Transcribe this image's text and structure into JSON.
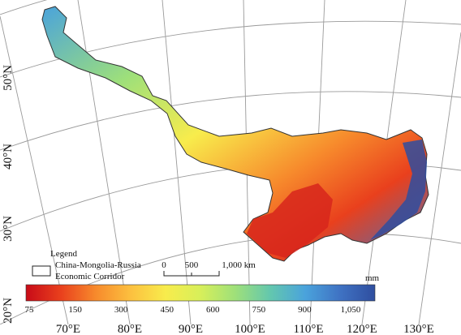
{
  "map": {
    "lat_labels": [
      "20°N",
      "30°N",
      "40°N",
      "50°N"
    ],
    "lon_labels": [
      "70°E",
      "80°E",
      "90°E",
      "100°E",
      "110°E",
      "120°E",
      "130°E"
    ]
  },
  "legend": {
    "title": "Legend",
    "item_line1": "China-Mongolia-Russia",
    "item_line2": "Economic Corridor"
  },
  "scale_bar": {
    "ticks": [
      "0",
      "500",
      "1,000 km"
    ]
  },
  "color_bar": {
    "unit": "mm",
    "ticks": [
      "75",
      "150",
      "300",
      "450",
      "600",
      "750",
      "900",
      "1,050"
    ],
    "colors": [
      "#c80b18",
      "#e9401d",
      "#f78a2c",
      "#fcc03f",
      "#f8ec4c",
      "#d7ef5a",
      "#9ee07a",
      "#63c7ae",
      "#4aa3dc",
      "#3f72c3",
      "#2f4e9f"
    ]
  },
  "colors": {
    "grid": "#9a9a9a",
    "outline": "#333333",
    "background": "#ffffff"
  }
}
